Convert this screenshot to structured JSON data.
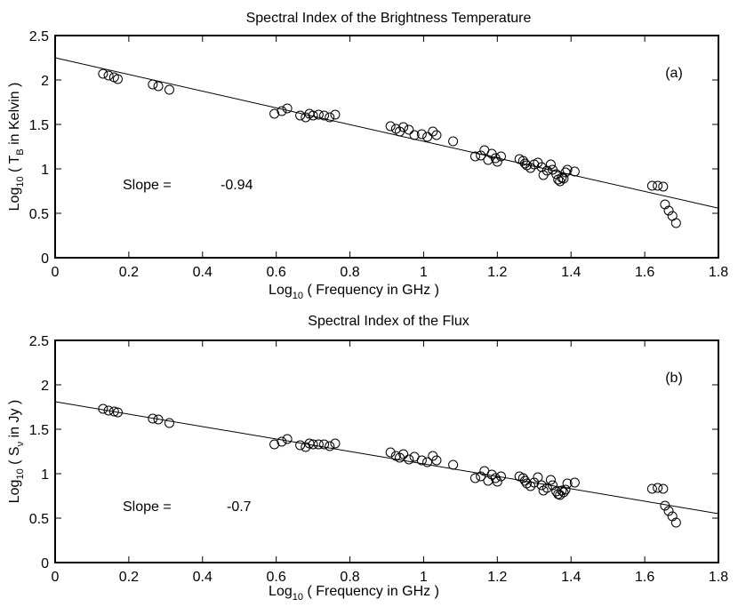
{
  "chart_data": [
    {
      "type": "scatter",
      "title": "Spectral Index of the Brightness Temperature",
      "panel_label": "(a)",
      "xlabel": {
        "prefix": "Log",
        "sub": "10",
        "text": " ( Frequency in GHz )"
      },
      "ylabel": {
        "prefix": "Log",
        "sub1": "10",
        "mid": " ( T",
        "sub2": "B",
        "suffix": " in Kelvin )"
      },
      "slope_label": "Slope =",
      "slope_value": "-0.94",
      "xlim": [
        0,
        1.8
      ],
      "ylim": [
        0,
        2.5
      ],
      "xticks": [
        0,
        0.2,
        0.4,
        0.6,
        0.8,
        1,
        1.2,
        1.4,
        1.6,
        1.8
      ],
      "xtick_labels": [
        "0",
        "0.2",
        "0.4",
        "0.6",
        "0.8",
        "1",
        "1.2",
        "1.4",
        "1.6",
        "1.8"
      ],
      "yticks": [
        0,
        0.5,
        1,
        1.5,
        2,
        2.5
      ],
      "ytick_labels": [
        "0",
        "0.5",
        "1",
        "1.5",
        "2",
        "2.5"
      ],
      "fit_line": {
        "intercept": 2.25,
        "slope": -0.94
      },
      "points": [
        [
          0.13,
          2.07
        ],
        [
          0.145,
          2.05
        ],
        [
          0.16,
          2.03
        ],
        [
          0.17,
          2.01
        ],
        [
          0.265,
          1.95
        ],
        [
          0.28,
          1.93
        ],
        [
          0.31,
          1.89
        ],
        [
          0.595,
          1.62
        ],
        [
          0.615,
          1.65
        ],
        [
          0.63,
          1.68
        ],
        [
          0.665,
          1.6
        ],
        [
          0.68,
          1.58
        ],
        [
          0.69,
          1.62
        ],
        [
          0.7,
          1.6
        ],
        [
          0.715,
          1.61
        ],
        [
          0.73,
          1.6
        ],
        [
          0.745,
          1.58
        ],
        [
          0.76,
          1.61
        ],
        [
          0.91,
          1.48
        ],
        [
          0.925,
          1.45
        ],
        [
          0.935,
          1.42
        ],
        [
          0.945,
          1.47
        ],
        [
          0.96,
          1.44
        ],
        [
          0.975,
          1.38
        ],
        [
          0.995,
          1.39
        ],
        [
          1.01,
          1.36
        ],
        [
          1.025,
          1.42
        ],
        [
          1.035,
          1.38
        ],
        [
          1.08,
          1.31
        ],
        [
          1.14,
          1.14
        ],
        [
          1.155,
          1.15
        ],
        [
          1.165,
          1.21
        ],
        [
          1.175,
          1.1
        ],
        [
          1.185,
          1.17
        ],
        [
          1.195,
          1.12
        ],
        [
          1.2,
          1.08
        ],
        [
          1.21,
          1.14
        ],
        [
          1.26,
          1.11
        ],
        [
          1.27,
          1.09
        ],
        [
          1.275,
          1.06
        ],
        [
          1.28,
          1.04
        ],
        [
          1.29,
          1.01
        ],
        [
          1.3,
          1.05
        ],
        [
          1.31,
          1.07
        ],
        [
          1.32,
          1.02
        ],
        [
          1.325,
          0.93
        ],
        [
          1.335,
          0.98
        ],
        [
          1.345,
          1.05
        ],
        [
          1.35,
          0.99
        ],
        [
          1.36,
          0.94
        ],
        [
          1.365,
          0.88
        ],
        [
          1.37,
          0.86
        ],
        [
          1.375,
          0.9
        ],
        [
          1.38,
          0.89
        ],
        [
          1.385,
          0.96
        ],
        [
          1.39,
          0.99
        ],
        [
          1.41,
          0.97
        ],
        [
          1.62,
          0.81
        ],
        [
          1.635,
          0.81
        ],
        [
          1.65,
          0.8
        ],
        [
          1.655,
          0.6
        ],
        [
          1.665,
          0.53
        ],
        [
          1.675,
          0.47
        ],
        [
          1.685,
          0.39
        ]
      ]
    },
    {
      "type": "scatter",
      "title": "Spectral Index of the Flux",
      "panel_label": "(b)",
      "xlabel": {
        "prefix": "Log",
        "sub": "10",
        "text": " ( Frequency in GHz )"
      },
      "ylabel": {
        "prefix": "Log",
        "sub1": "10",
        "mid": " ( S",
        "sub2": "ν",
        "suffix": " in Jy )"
      },
      "slope_label": "Slope =",
      "slope_value": "-0.7",
      "xlim": [
        0,
        1.8
      ],
      "ylim": [
        0,
        2.5
      ],
      "xticks": [
        0,
        0.2,
        0.4,
        0.6,
        0.8,
        1,
        1.2,
        1.4,
        1.6,
        1.8
      ],
      "xtick_labels": [
        "0",
        "0.2",
        "0.4",
        "0.6",
        "0.8",
        "1",
        "1.2",
        "1.4",
        "1.6",
        "1.8"
      ],
      "yticks": [
        0,
        0.5,
        1,
        1.5,
        2,
        2.5
      ],
      "ytick_labels": [
        "0",
        "0.5",
        "1",
        "1.5",
        "2",
        "2.5"
      ],
      "fit_line": {
        "intercept": 1.81,
        "slope": -0.7
      },
      "points": [
        [
          0.13,
          1.73
        ],
        [
          0.145,
          1.71
        ],
        [
          0.16,
          1.7
        ],
        [
          0.17,
          1.69
        ],
        [
          0.265,
          1.62
        ],
        [
          0.28,
          1.61
        ],
        [
          0.31,
          1.57
        ],
        [
          0.595,
          1.33
        ],
        [
          0.615,
          1.36
        ],
        [
          0.63,
          1.39
        ],
        [
          0.665,
          1.32
        ],
        [
          0.68,
          1.3
        ],
        [
          0.69,
          1.34
        ],
        [
          0.7,
          1.33
        ],
        [
          0.715,
          1.33
        ],
        [
          0.73,
          1.33
        ],
        [
          0.745,
          1.31
        ],
        [
          0.76,
          1.34
        ],
        [
          0.91,
          1.24
        ],
        [
          0.925,
          1.2
        ],
        [
          0.935,
          1.18
        ],
        [
          0.945,
          1.22
        ],
        [
          0.96,
          1.16
        ],
        [
          0.975,
          1.19
        ],
        [
          0.995,
          1.15
        ],
        [
          1.01,
          1.13
        ],
        [
          1.025,
          1.2
        ],
        [
          1.035,
          1.15
        ],
        [
          1.08,
          1.1
        ],
        [
          1.14,
          0.95
        ],
        [
          1.155,
          0.97
        ],
        [
          1.165,
          1.03
        ],
        [
          1.175,
          0.92
        ],
        [
          1.185,
          0.99
        ],
        [
          1.195,
          0.95
        ],
        [
          1.2,
          0.91
        ],
        [
          1.21,
          0.97
        ],
        [
          1.26,
          0.97
        ],
        [
          1.27,
          0.95
        ],
        [
          1.275,
          0.92
        ],
        [
          1.28,
          0.89
        ],
        [
          1.29,
          0.86
        ],
        [
          1.3,
          0.9
        ],
        [
          1.31,
          0.96
        ],
        [
          1.32,
          0.87
        ],
        [
          1.325,
          0.81
        ],
        [
          1.335,
          0.84
        ],
        [
          1.345,
          0.93
        ],
        [
          1.35,
          0.87
        ],
        [
          1.36,
          0.8
        ],
        [
          1.365,
          0.77
        ],
        [
          1.37,
          0.76
        ],
        [
          1.375,
          0.81
        ],
        [
          1.38,
          0.79
        ],
        [
          1.385,
          0.82
        ],
        [
          1.39,
          0.89
        ],
        [
          1.41,
          0.9
        ],
        [
          1.62,
          0.83
        ],
        [
          1.635,
          0.84
        ],
        [
          1.65,
          0.83
        ],
        [
          1.655,
          0.64
        ],
        [
          1.665,
          0.58
        ],
        [
          1.675,
          0.52
        ],
        [
          1.685,
          0.45
        ]
      ]
    }
  ]
}
